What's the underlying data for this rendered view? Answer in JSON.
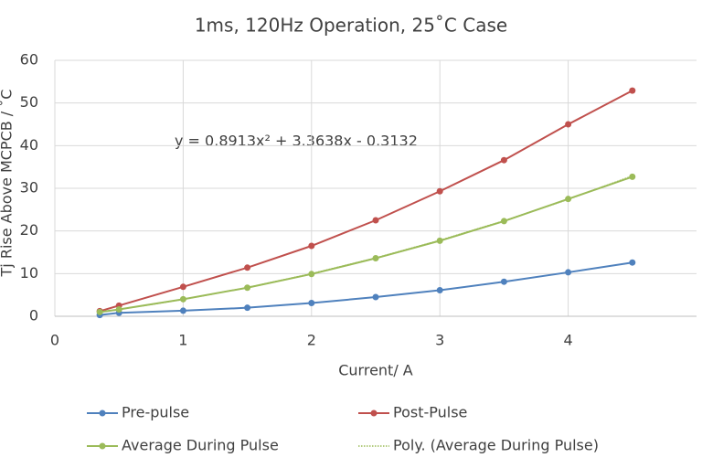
{
  "chart_data": {
    "type": "line",
    "title": "1ms, 120Hz Operation, 25˚C Case",
    "x_label": "Current/ A",
    "y_label": "Tj Rise Above MCPCB / ˚C",
    "annotation": "y = 0.8913x² + 3.3638x - 0.3132",
    "x": [
      0.35,
      0.5,
      1,
      1.5,
      2,
      2.5,
      3,
      3.5,
      4,
      4.5
    ],
    "series": [
      {
        "name": "Pre-pulse",
        "color": "#4f81bd",
        "values": [
          0.3,
          0.8,
          1.3,
          2.0,
          3.1,
          4.5,
          6.1,
          8.1,
          10.3,
          12.6
        ]
      },
      {
        "name": "Post-Pulse",
        "color": "#c0504d",
        "values": [
          1.2,
          2.5,
          6.9,
          11.4,
          16.5,
          22.5,
          29.3,
          36.6,
          45.0,
          52.9
        ]
      },
      {
        "name": "Average During Pulse",
        "color": "#9bbb59",
        "values": [
          1.0,
          1.6,
          4.0,
          6.7,
          9.9,
          13.6,
          17.7,
          22.3,
          27.5,
          32.7
        ]
      },
      {
        "name": "Poly. (Average During Pulse)",
        "color": "#9bbb59",
        "style": "dotted",
        "values": [
          0.97,
          1.59,
          3.94,
          6.74,
          9.98,
          13.67,
          17.8,
          22.38,
          27.4,
          32.9
        ]
      }
    ],
    "xlim": [
      0,
      5
    ],
    "xticks": [
      0,
      1,
      2,
      3,
      4
    ],
    "ylim": [
      0,
      60
    ],
    "yticks": [
      0,
      10,
      20,
      30,
      40,
      50,
      60
    ],
    "grid": true
  }
}
